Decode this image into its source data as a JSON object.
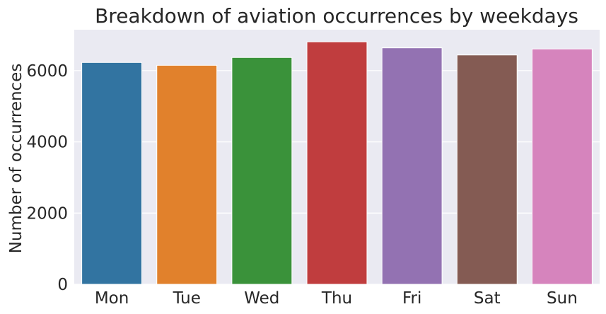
{
  "chart_data": {
    "type": "bar",
    "title": "Breakdown of aviation occurrences by weekdays",
    "xlabel": "",
    "ylabel": "Number of occurrences",
    "categories": [
      "Mon",
      "Tue",
      "Wed",
      "Thu",
      "Fri",
      "Sat",
      "Sun"
    ],
    "values": [
      6230,
      6150,
      6370,
      6810,
      6640,
      6440,
      6610
    ],
    "colors": [
      "#3274a1",
      "#e1812c",
      "#3a923a",
      "#c03d3e",
      "#9372b2",
      "#845b53",
      "#d684bd"
    ],
    "yticks": [
      0,
      2000,
      4000,
      6000
    ],
    "ylim": [
      0,
      7150
    ],
    "grid": true,
    "background": "#eaeaf2"
  }
}
